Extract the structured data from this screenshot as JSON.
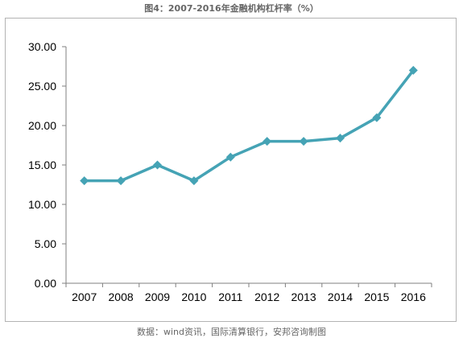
{
  "chart_data": {
    "type": "line",
    "title": "图4：2007-2016年金融机构杠杆率（%）",
    "source": "数据：wind资讯，国际清算银行，安邦咨询制图",
    "categories": [
      "2007",
      "2008",
      "2009",
      "2010",
      "2011",
      "2012",
      "2013",
      "2014",
      "2015",
      "2016"
    ],
    "values": [
      13,
      13,
      15,
      13,
      16,
      18,
      18,
      18.4,
      21,
      27
    ],
    "y_ticks": [
      "0.00",
      "5.00",
      "10.00",
      "15.00",
      "20.00",
      "25.00",
      "30.00"
    ],
    "ylim": [
      0,
      30
    ],
    "grid": false,
    "legend": "none",
    "line_color": "#45a3b5",
    "marker": "diamond"
  }
}
